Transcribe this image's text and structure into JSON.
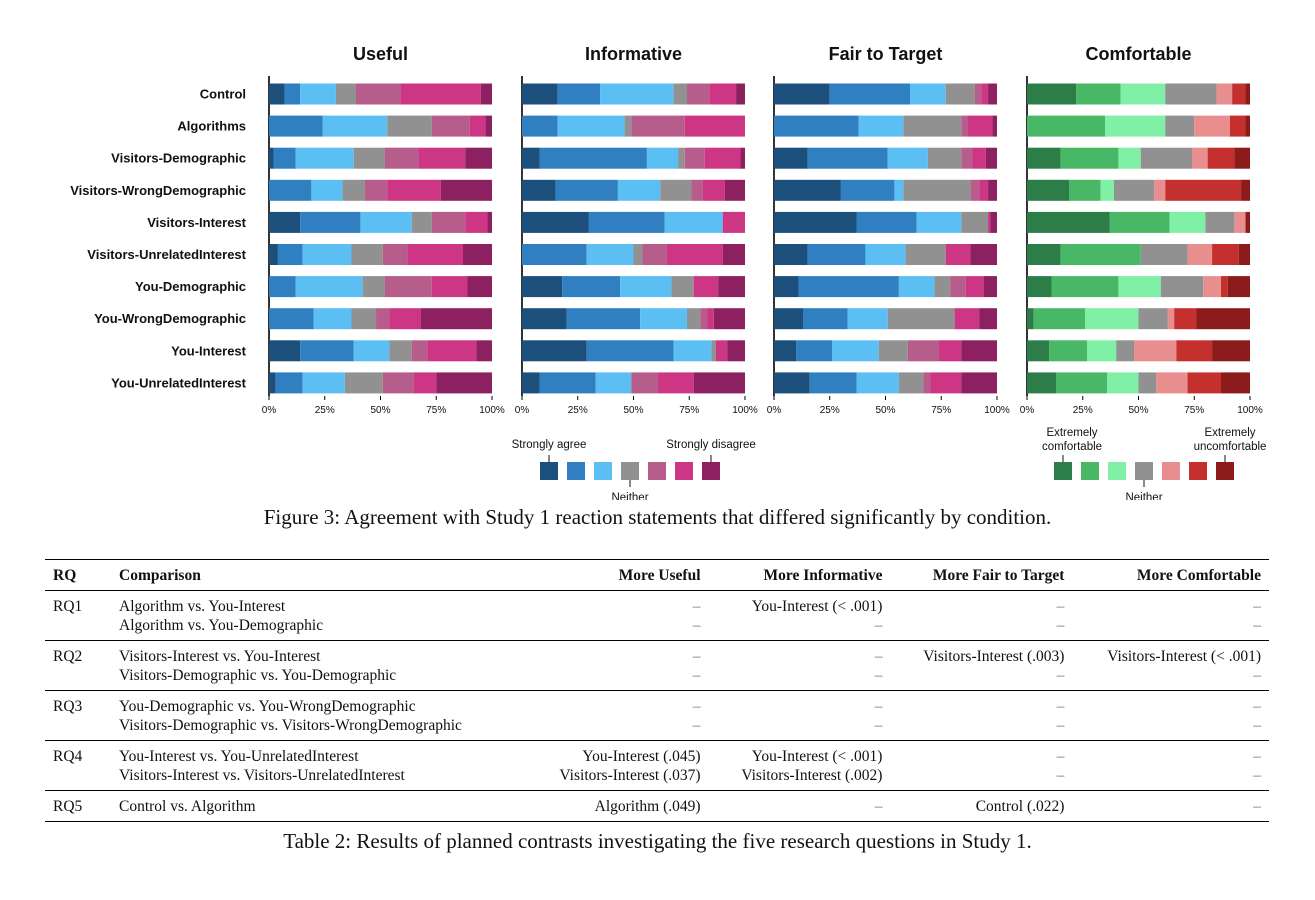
{
  "figure": {
    "panels": [
      "Useful",
      "Informative",
      "Fair to Target",
      "Comfortable"
    ],
    "rows": [
      "Control",
      "Algorithms",
      "Visitors-Demographic",
      "Visitors-WrongDemographic",
      "Visitors-Interest",
      "Visitors-UnrelatedInterest",
      "You-Demographic",
      "You-WrongDemographic",
      "You-Interest",
      "You-UnrelatedInterest"
    ],
    "ticks": [
      "0%",
      "25%",
      "50%",
      "75%",
      "100%"
    ],
    "agree_colors": [
      "#1d4f7d",
      "#2f7fc1",
      "#5cbff4",
      "#919191",
      "#b75d8c",
      "#cc3684",
      "#8c2060"
    ],
    "comfort_colors": [
      "#2d7d48",
      "#48b867",
      "#7ff0a6",
      "#919191",
      "#e98e8e",
      "#c4302e",
      "#8c1b1b"
    ],
    "legend_agree": {
      "left": "Strongly agree",
      "right": "Strongly disagree",
      "middle": "Neither"
    },
    "legend_comfort": {
      "left": "Extremely comfortable",
      "right": "Extremely uncomfortable",
      "middle": "Neither"
    }
  },
  "chart_data": [
    {
      "type": "bar",
      "stacked": "horizontal-100%",
      "title": "Useful",
      "categories": [
        "Control",
        "Algorithms",
        "Visitors-Demographic",
        "Visitors-WrongDemographic",
        "Visitors-Interest",
        "Visitors-UnrelatedInterest",
        "You-Demographic",
        "You-WrongDemographic",
        "You-Interest",
        "You-UnrelatedInterest"
      ],
      "xlim": [
        0,
        100
      ],
      "series": [
        {
          "values": [
            7,
            0,
            2,
            0,
            14,
            4,
            0,
            0,
            14,
            3
          ]
        },
        {
          "values": [
            7,
            24,
            10,
            19,
            27,
            11,
            12,
            20,
            24,
            12
          ]
        },
        {
          "values": [
            16,
            29,
            26,
            14,
            23,
            22,
            30,
            17,
            16,
            19
          ]
        },
        {
          "values": [
            9,
            20,
            14,
            10,
            9,
            14,
            10,
            11,
            10,
            17
          ]
        },
        {
          "values": [
            20,
            17,
            15,
            10,
            15,
            11,
            21,
            6,
            7,
            14
          ]
        },
        {
          "values": [
            36,
            7,
            21,
            24,
            10,
            25,
            16,
            14,
            22,
            10
          ]
        },
        {
          "values": [
            5,
            3,
            12,
            23,
            2,
            13,
            11,
            32,
            7,
            25
          ]
        }
      ]
    },
    {
      "type": "bar",
      "stacked": "horizontal-100%",
      "title": "Informative",
      "categories": [
        "Control",
        "Algorithms",
        "Visitors-Demographic",
        "Visitors-WrongDemographic",
        "Visitors-Interest",
        "Visitors-UnrelatedInterest",
        "You-Demographic",
        "You-WrongDemographic",
        "You-Interest",
        "You-UnrelatedInterest"
      ],
      "xlim": [
        0,
        100
      ],
      "series": [
        {
          "values": [
            16,
            0,
            8,
            15,
            30,
            0,
            18,
            20,
            29,
            8
          ]
        },
        {
          "values": [
            19,
            16,
            48,
            28,
            34,
            29,
            26,
            33,
            39,
            25
          ]
        },
        {
          "values": [
            33,
            30,
            14,
            19,
            26,
            21,
            23,
            21,
            17,
            16
          ]
        },
        {
          "values": [
            6,
            3,
            3,
            14,
            0,
            4,
            10,
            6,
            2,
            0
          ]
        },
        {
          "values": [
            10,
            24,
            9,
            5,
            0,
            11,
            0,
            3,
            0,
            12
          ]
        },
        {
          "values": [
            12,
            27,
            16,
            10,
            10,
            25,
            11,
            3,
            5,
            16
          ]
        },
        {
          "values": [
            4,
            0,
            2,
            9,
            0,
            10,
            12,
            14,
            8,
            23
          ]
        }
      ]
    },
    {
      "type": "bar",
      "stacked": "horizontal-100%",
      "title": "Fair to Target",
      "categories": [
        "Control",
        "Algorithms",
        "Visitors-Demographic",
        "Visitors-WrongDemographic",
        "Visitors-Interest",
        "Visitors-UnrelatedInterest",
        "You-Demographic",
        "You-WrongDemographic",
        "You-Interest",
        "You-UnrelatedInterest"
      ],
      "xlim": [
        0,
        100
      ],
      "series": [
        {
          "values": [
            25,
            0,
            15,
            30,
            37,
            15,
            11,
            13,
            10,
            16
          ]
        },
        {
          "values": [
            36,
            38,
            36,
            24,
            27,
            26,
            45,
            20,
            16,
            21
          ]
        },
        {
          "values": [
            16,
            20,
            18,
            4,
            20,
            18,
            16,
            18,
            21,
            19
          ]
        },
        {
          "values": [
            13,
            26,
            15,
            30,
            12,
            18,
            7,
            30,
            13,
            11
          ]
        },
        {
          "values": [
            3,
            3,
            5,
            4,
            0,
            0,
            7,
            0,
            14,
            3
          ]
        },
        {
          "values": [
            3,
            11,
            6,
            4,
            1,
            11,
            8,
            11,
            10,
            14
          ]
        },
        {
          "values": [
            4,
            2,
            5,
            4,
            3,
            12,
            6,
            8,
            16,
            16
          ]
        }
      ]
    },
    {
      "type": "bar",
      "stacked": "horizontal-100%",
      "title": "Comfortable",
      "categories": [
        "Control",
        "Algorithms",
        "Visitors-Demographic",
        "Visitors-WrongDemographic",
        "Visitors-Interest",
        "Visitors-UnrelatedInterest",
        "You-Demographic",
        "You-WrongDemographic",
        "You-Interest",
        "You-UnrelatedInterest"
      ],
      "xlim": [
        0,
        100
      ],
      "series": [
        {
          "values": [
            22,
            0,
            15,
            19,
            37,
            15,
            11,
            3,
            10,
            13
          ]
        },
        {
          "values": [
            20,
            35,
            26,
            14,
            27,
            36,
            30,
            23,
            17,
            23
          ]
        },
        {
          "values": [
            20,
            27,
            10,
            6,
            16,
            0,
            19,
            24,
            13,
            14
          ]
        },
        {
          "values": [
            23,
            13,
            23,
            18,
            13,
            21,
            19,
            13,
            8,
            8
          ]
        },
        {
          "values": [
            7,
            16,
            7,
            5,
            5,
            11,
            8,
            3,
            19,
            14
          ]
        },
        {
          "values": [
            6,
            7,
            12,
            34,
            0,
            12,
            3,
            10,
            16,
            15
          ]
        },
        {
          "values": [
            2,
            2,
            7,
            4,
            2,
            5,
            10,
            24,
            17,
            13
          ]
        }
      ]
    }
  ],
  "figure_caption": "Figure 3: Agreement with Study 1 reaction statements that differed significantly by condition.",
  "table": {
    "headers": [
      "RQ",
      "Comparison",
      "More Useful",
      "More Informative",
      "More Fair to Target",
      "More Comfortable"
    ],
    "groups": [
      {
        "rq": "RQ1",
        "rows": [
          {
            "comparison": "Algorithm vs. You-Interest",
            "useful": "–",
            "informative": "You-Interest (< .001)",
            "fair": "–",
            "comfortable": "–"
          },
          {
            "comparison": "Algorithm vs. You-Demographic",
            "useful": "–",
            "informative": "–",
            "fair": "–",
            "comfortable": "–"
          }
        ]
      },
      {
        "rq": "RQ2",
        "rows": [
          {
            "comparison": "Visitors-Interest vs. You-Interest",
            "useful": "–",
            "informative": "–",
            "fair": "Visitors-Interest (.003)",
            "comfortable": "Visitors-Interest (< .001)"
          },
          {
            "comparison": "Visitors-Demographic vs. You-Demographic",
            "useful": "–",
            "informative": "–",
            "fair": "–",
            "comfortable": "–"
          }
        ]
      },
      {
        "rq": "RQ3",
        "rows": [
          {
            "comparison": "You-Demographic vs. You-WrongDemographic",
            "useful": "–",
            "informative": "–",
            "fair": "–",
            "comfortable": "–"
          },
          {
            "comparison": "Visitors-Demographic vs. Visitors-WrongDemographic",
            "useful": "–",
            "informative": "–",
            "fair": "–",
            "comfortable": "–"
          }
        ]
      },
      {
        "rq": "RQ4",
        "rows": [
          {
            "comparison": "You-Interest vs. You-UnrelatedInterest",
            "useful": "You-Interest (.045)",
            "informative": "You-Interest (< .001)",
            "fair": "–",
            "comfortable": "–"
          },
          {
            "comparison": "Visitors-Interest vs. Visitors-UnrelatedInterest",
            "useful": "Visitors-Interest (.037)",
            "informative": "Visitors-Interest (.002)",
            "fair": "–",
            "comfortable": "–"
          }
        ]
      },
      {
        "rq": "RQ5",
        "rows": [
          {
            "comparison": "Control vs. Algorithm",
            "useful": "Algorithm (.049)",
            "informative": "–",
            "fair": "Control (.022)",
            "comfortable": "–"
          }
        ]
      }
    ]
  },
  "table_caption": "Table 2: Results of planned contrasts investigating the five research questions in Study 1."
}
